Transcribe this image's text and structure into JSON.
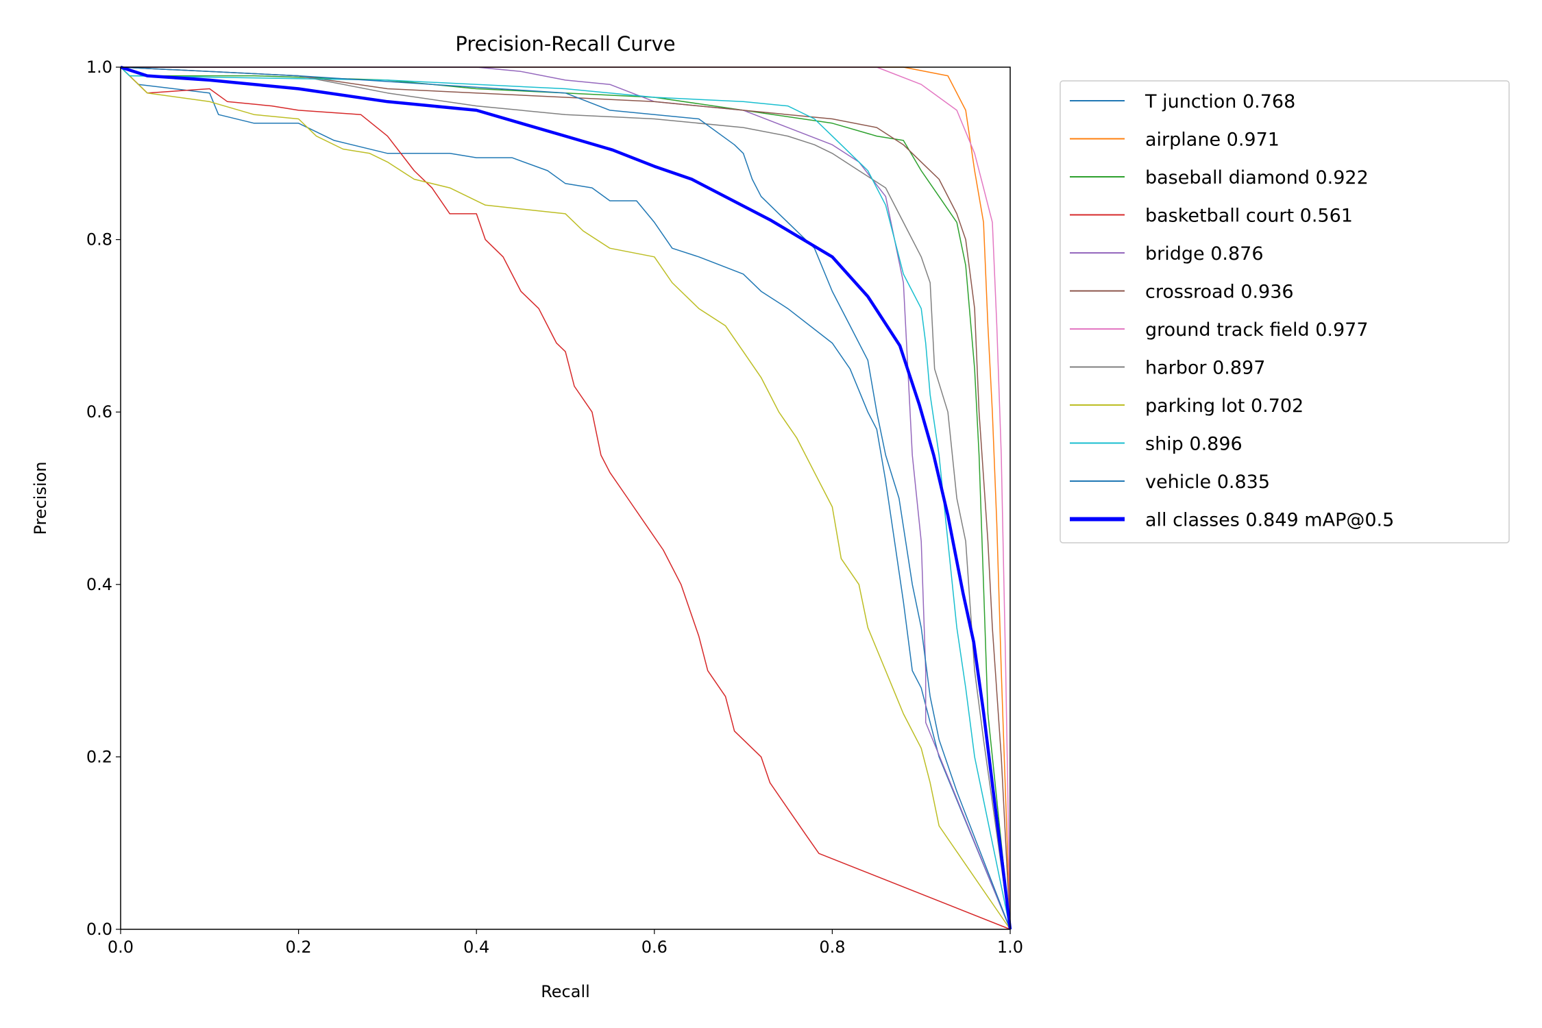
{
  "chart_data": {
    "type": "line",
    "title": "Precision-Recall Curve",
    "xlabel": "Recall",
    "ylabel": "Precision",
    "xlim": [
      0,
      1
    ],
    "ylim": [
      0,
      1
    ],
    "xticks": [
      "0.0",
      "0.2",
      "0.4",
      "0.6",
      "0.8",
      "1.0"
    ],
    "yticks": [
      "0.0",
      "0.2",
      "0.4",
      "0.6",
      "0.8",
      "1.0"
    ],
    "grid": false,
    "legend_placement": "outside-right",
    "series": [
      {
        "name": "T junction 0.768",
        "color": "#1f77b4",
        "width": 1,
        "points": [
          [
            0,
            1
          ],
          [
            0.02,
            0.98
          ],
          [
            0.1,
            0.97
          ],
          [
            0.11,
            0.945
          ],
          [
            0.15,
            0.935
          ],
          [
            0.2,
            0.935
          ],
          [
            0.24,
            0.915
          ],
          [
            0.3,
            0.9
          ],
          [
            0.37,
            0.9
          ],
          [
            0.4,
            0.895
          ],
          [
            0.44,
            0.895
          ],
          [
            0.48,
            0.88
          ],
          [
            0.5,
            0.865
          ],
          [
            0.53,
            0.86
          ],
          [
            0.55,
            0.845
          ],
          [
            0.58,
            0.845
          ],
          [
            0.6,
            0.82
          ],
          [
            0.62,
            0.79
          ],
          [
            0.65,
            0.78
          ],
          [
            0.7,
            0.76
          ],
          [
            0.72,
            0.74
          ],
          [
            0.75,
            0.72
          ],
          [
            0.8,
            0.68
          ],
          [
            0.82,
            0.65
          ],
          [
            0.84,
            0.6
          ],
          [
            0.85,
            0.58
          ],
          [
            0.86,
            0.52
          ],
          [
            0.87,
            0.45
          ],
          [
            0.88,
            0.38
          ],
          [
            0.89,
            0.3
          ],
          [
            0.9,
            0.28
          ],
          [
            0.92,
            0.2
          ],
          [
            1,
            0
          ]
        ]
      },
      {
        "name": "airplane 0.971",
        "color": "#ff7f0e",
        "width": 1,
        "points": [
          [
            0,
            1
          ],
          [
            0.6,
            1
          ],
          [
            0.88,
            1
          ],
          [
            0.93,
            0.99
          ],
          [
            0.95,
            0.95
          ],
          [
            0.96,
            0.88
          ],
          [
            0.97,
            0.82
          ],
          [
            0.975,
            0.7
          ],
          [
            0.98,
            0.6
          ],
          [
            0.985,
            0.47
          ],
          [
            0.99,
            0.3
          ],
          [
            1,
            0
          ]
        ]
      },
      {
        "name": "baseball diamond 0.922",
        "color": "#2ca02c",
        "width": 1,
        "points": [
          [
            0,
            1
          ],
          [
            0.01,
            0.99
          ],
          [
            0.15,
            0.99
          ],
          [
            0.3,
            0.985
          ],
          [
            0.4,
            0.975
          ],
          [
            0.6,
            0.965
          ],
          [
            0.7,
            0.95
          ],
          [
            0.8,
            0.935
          ],
          [
            0.85,
            0.92
          ],
          [
            0.88,
            0.915
          ],
          [
            0.9,
            0.88
          ],
          [
            0.92,
            0.85
          ],
          [
            0.94,
            0.82
          ],
          [
            0.95,
            0.77
          ],
          [
            0.96,
            0.65
          ],
          [
            0.965,
            0.55
          ],
          [
            0.97,
            0.4
          ],
          [
            0.975,
            0.25
          ],
          [
            1,
            0
          ]
        ]
      },
      {
        "name": "basketball court 0.561",
        "color": "#d62728",
        "width": 1,
        "points": [
          [
            0,
            1
          ],
          [
            0.02,
            0.98
          ],
          [
            0.03,
            0.97
          ],
          [
            0.1,
            0.975
          ],
          [
            0.12,
            0.96
          ],
          [
            0.17,
            0.955
          ],
          [
            0.2,
            0.95
          ],
          [
            0.27,
            0.945
          ],
          [
            0.3,
            0.92
          ],
          [
            0.33,
            0.88
          ],
          [
            0.35,
            0.86
          ],
          [
            0.37,
            0.83
          ],
          [
            0.4,
            0.83
          ],
          [
            0.41,
            0.8
          ],
          [
            0.43,
            0.78
          ],
          [
            0.45,
            0.74
          ],
          [
            0.47,
            0.72
          ],
          [
            0.49,
            0.68
          ],
          [
            0.5,
            0.67
          ],
          [
            0.51,
            0.63
          ],
          [
            0.53,
            0.6
          ],
          [
            0.54,
            0.55
          ],
          [
            0.55,
            0.53
          ],
          [
            0.57,
            0.5
          ],
          [
            0.59,
            0.47
          ],
          [
            0.61,
            0.44
          ],
          [
            0.63,
            0.4
          ],
          [
            0.65,
            0.34
          ],
          [
            0.66,
            0.3
          ],
          [
            0.68,
            0.27
          ],
          [
            0.69,
            0.23
          ],
          [
            0.72,
            0.2
          ],
          [
            0.73,
            0.17
          ],
          [
            0.75,
            0.14
          ],
          [
            0.77,
            0.11
          ],
          [
            0.785,
            0.088
          ],
          [
            1,
            0
          ]
        ]
      },
      {
        "name": "bridge 0.876",
        "color": "#9467bd",
        "width": 1,
        "points": [
          [
            0,
            1
          ],
          [
            0.4,
            1
          ],
          [
            0.45,
            0.995
          ],
          [
            0.5,
            0.985
          ],
          [
            0.55,
            0.98
          ],
          [
            0.6,
            0.96
          ],
          [
            0.7,
            0.95
          ],
          [
            0.75,
            0.93
          ],
          [
            0.8,
            0.91
          ],
          [
            0.83,
            0.89
          ],
          [
            0.86,
            0.85
          ],
          [
            0.87,
            0.8
          ],
          [
            0.88,
            0.75
          ],
          [
            0.885,
            0.65
          ],
          [
            0.89,
            0.55
          ],
          [
            0.9,
            0.45
          ],
          [
            0.905,
            0.3
          ],
          [
            0.905,
            0.24
          ],
          [
            1,
            0
          ]
        ]
      },
      {
        "name": "crossroad 0.936",
        "color": "#8c564b",
        "width": 1,
        "points": [
          [
            0,
            1
          ],
          [
            0.2,
            0.99
          ],
          [
            0.3,
            0.975
          ],
          [
            0.4,
            0.97
          ],
          [
            0.5,
            0.965
          ],
          [
            0.6,
            0.96
          ],
          [
            0.7,
            0.95
          ],
          [
            0.8,
            0.94
          ],
          [
            0.85,
            0.93
          ],
          [
            0.88,
            0.91
          ],
          [
            0.9,
            0.89
          ],
          [
            0.92,
            0.87
          ],
          [
            0.94,
            0.83
          ],
          [
            0.95,
            0.8
          ],
          [
            0.96,
            0.72
          ],
          [
            0.965,
            0.6
          ],
          [
            0.975,
            0.45
          ],
          [
            0.98,
            0.35
          ],
          [
            0.99,
            0.2
          ],
          [
            1,
            0
          ]
        ]
      },
      {
        "name": "ground track field 0.977",
        "color": "#e377c2",
        "width": 1,
        "points": [
          [
            0,
            1
          ],
          [
            0.6,
            1
          ],
          [
            0.85,
            1
          ],
          [
            0.9,
            0.98
          ],
          [
            0.94,
            0.95
          ],
          [
            0.96,
            0.9
          ],
          [
            0.97,
            0.86
          ],
          [
            0.98,
            0.82
          ],
          [
            0.985,
            0.7
          ],
          [
            0.99,
            0.55
          ],
          [
            0.995,
            0.3
          ],
          [
            1,
            0
          ]
        ]
      },
      {
        "name": "harbor 0.897",
        "color": "#7f7f7f",
        "width": 1,
        "points": [
          [
            0,
            1
          ],
          [
            0.1,
            0.995
          ],
          [
            0.2,
            0.99
          ],
          [
            0.3,
            0.97
          ],
          [
            0.4,
            0.955
          ],
          [
            0.5,
            0.945
          ],
          [
            0.6,
            0.94
          ],
          [
            0.7,
            0.93
          ],
          [
            0.75,
            0.92
          ],
          [
            0.78,
            0.91
          ],
          [
            0.8,
            0.9
          ],
          [
            0.83,
            0.88
          ],
          [
            0.86,
            0.86
          ],
          [
            0.88,
            0.82
          ],
          [
            0.9,
            0.78
          ],
          [
            0.91,
            0.75
          ],
          [
            0.915,
            0.65
          ],
          [
            0.93,
            0.6
          ],
          [
            0.94,
            0.5
          ],
          [
            0.95,
            0.45
          ],
          [
            0.96,
            0.3
          ],
          [
            0.97,
            0.22
          ],
          [
            1,
            0
          ]
        ]
      },
      {
        "name": "parking lot 0.702",
        "color": "#bcbd22",
        "width": 1,
        "points": [
          [
            0,
            1
          ],
          [
            0.03,
            0.97
          ],
          [
            0.1,
            0.96
          ],
          [
            0.15,
            0.945
          ],
          [
            0.2,
            0.94
          ],
          [
            0.22,
            0.92
          ],
          [
            0.25,
            0.905
          ],
          [
            0.28,
            0.9
          ],
          [
            0.3,
            0.89
          ],
          [
            0.33,
            0.87
          ],
          [
            0.37,
            0.86
          ],
          [
            0.41,
            0.84
          ],
          [
            0.5,
            0.83
          ],
          [
            0.52,
            0.81
          ],
          [
            0.55,
            0.79
          ],
          [
            0.6,
            0.78
          ],
          [
            0.62,
            0.75
          ],
          [
            0.65,
            0.72
          ],
          [
            0.68,
            0.7
          ],
          [
            0.7,
            0.67
          ],
          [
            0.72,
            0.64
          ],
          [
            0.74,
            0.6
          ],
          [
            0.76,
            0.57
          ],
          [
            0.78,
            0.53
          ],
          [
            0.8,
            0.49
          ],
          [
            0.81,
            0.43
          ],
          [
            0.83,
            0.4
          ],
          [
            0.84,
            0.35
          ],
          [
            0.86,
            0.3
          ],
          [
            0.88,
            0.25
          ],
          [
            0.9,
            0.21
          ],
          [
            0.91,
            0.17
          ],
          [
            0.92,
            0.12
          ],
          [
            1,
            0
          ]
        ]
      },
      {
        "name": "ship 0.896",
        "color": "#17becf",
        "width": 1,
        "points": [
          [
            0,
            1
          ],
          [
            0.01,
            0.99
          ],
          [
            0.3,
            0.985
          ],
          [
            0.5,
            0.975
          ],
          [
            0.6,
            0.965
          ],
          [
            0.7,
            0.96
          ],
          [
            0.75,
            0.955
          ],
          [
            0.78,
            0.94
          ],
          [
            0.8,
            0.92
          ],
          [
            0.82,
            0.9
          ],
          [
            0.84,
            0.88
          ],
          [
            0.86,
            0.84
          ],
          [
            0.87,
            0.8
          ],
          [
            0.88,
            0.76
          ],
          [
            0.9,
            0.72
          ],
          [
            0.905,
            0.68
          ],
          [
            0.91,
            0.62
          ],
          [
            0.92,
            0.55
          ],
          [
            0.93,
            0.45
          ],
          [
            0.94,
            0.35
          ],
          [
            0.95,
            0.28
          ],
          [
            0.96,
            0.2
          ],
          [
            0.97,
            0.15
          ],
          [
            1,
            0
          ]
        ]
      },
      {
        "name": "vehicle 0.835",
        "color": "#1f77b4",
        "width": 1,
        "points": [
          [
            0,
            1
          ],
          [
            0.2,
            0.99
          ],
          [
            0.5,
            0.97
          ],
          [
            0.55,
            0.95
          ],
          [
            0.65,
            0.94
          ],
          [
            0.69,
            0.91
          ],
          [
            0.7,
            0.9
          ],
          [
            0.71,
            0.87
          ],
          [
            0.72,
            0.85
          ],
          [
            0.74,
            0.83
          ],
          [
            0.78,
            0.79
          ],
          [
            0.8,
            0.74
          ],
          [
            0.82,
            0.7
          ],
          [
            0.84,
            0.66
          ],
          [
            0.85,
            0.6
          ],
          [
            0.86,
            0.55
          ],
          [
            0.875,
            0.5
          ],
          [
            0.89,
            0.4
          ],
          [
            0.9,
            0.35
          ],
          [
            0.91,
            0.27
          ],
          [
            0.92,
            0.22
          ],
          [
            0.94,
            0.16
          ],
          [
            1,
            0
          ]
        ]
      },
      {
        "name": "all classes 0.849 mAP@0.5",
        "color": "#0000ff",
        "width": 3,
        "points": [
          [
            0,
            1
          ],
          [
            0.03,
            0.99
          ],
          [
            0.1,
            0.985
          ],
          [
            0.2,
            0.975
          ],
          [
            0.3,
            0.96
          ],
          [
            0.4,
            0.95
          ],
          [
            0.45,
            0.935
          ],
          [
            0.5,
            0.92
          ],
          [
            0.553,
            0.904
          ],
          [
            0.6,
            0.885
          ],
          [
            0.642,
            0.87
          ],
          [
            0.73,
            0.823
          ],
          [
            0.8,
            0.78
          ],
          [
            0.84,
            0.734
          ],
          [
            0.876,
            0.677
          ],
          [
            0.898,
            0.608
          ],
          [
            0.914,
            0.55
          ],
          [
            0.93,
            0.48
          ],
          [
            0.947,
            0.39
          ],
          [
            0.959,
            0.333
          ],
          [
            0.97,
            0.252
          ],
          [
            0.981,
            0.16
          ],
          [
            0.992,
            0.07
          ],
          [
            1,
            0
          ]
        ]
      }
    ]
  }
}
